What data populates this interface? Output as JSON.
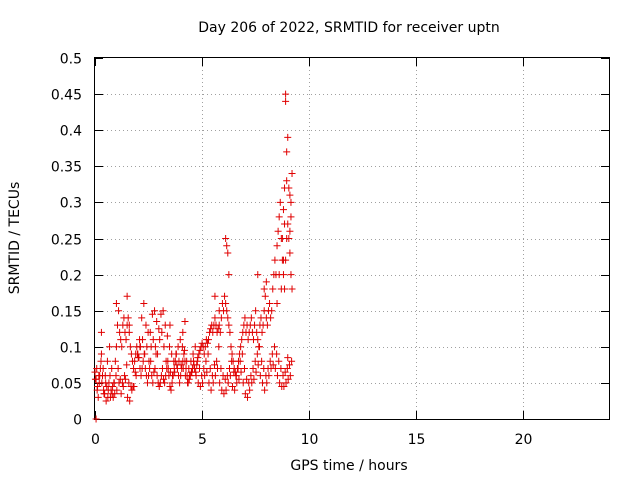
{
  "chart_data": {
    "type": "scatter",
    "title": "Day 206 of 2022, SRMTID for receiver uptn",
    "xlabel": "GPS time / hours",
    "ylabel": "SRMTID / TECUs",
    "xlim": [
      0,
      24
    ],
    "ylim": [
      0,
      0.5
    ],
    "xticks": [
      0,
      5,
      10,
      15,
      20
    ],
    "yticks": [
      0,
      0.05,
      0.1,
      0.15,
      0.2,
      0.25,
      0.3,
      0.35,
      0.4,
      0.45,
      0.5
    ],
    "xtick_labels": [
      "0",
      "5",
      "10",
      "15",
      "20"
    ],
    "ytick_labels": [
      "0",
      "0.05",
      "0.1",
      "0.15",
      "0.2",
      "0.25",
      "0.3",
      "0.35",
      "0.4",
      "0.45",
      "0.5"
    ],
    "grid": true,
    "marker": "+",
    "color": "#e00000",
    "series": [
      {
        "name": "SRMTID",
        "x": [
          0.0,
          0.05,
          0.1,
          0.15,
          0.2,
          0.25,
          0.3,
          0.35,
          0.4,
          0.45,
          0.5,
          0.55,
          0.6,
          0.65,
          0.7,
          0.75,
          0.8,
          0.85,
          0.9,
          0.95,
          1.0,
          1.05,
          1.1,
          1.15,
          1.2,
          1.25,
          1.3,
          1.35,
          1.4,
          1.45,
          1.5,
          1.55,
          1.6,
          1.65,
          1.7,
          1.75,
          1.8,
          1.85,
          1.9,
          1.95,
          2.0,
          2.05,
          2.1,
          2.15,
          2.2,
          2.25,
          2.3,
          2.35,
          2.4,
          2.45,
          2.5,
          2.55,
          2.6,
          2.65,
          2.7,
          2.75,
          2.8,
          2.85,
          2.9,
          2.95,
          3.0,
          3.05,
          3.1,
          3.15,
          3.2,
          3.25,
          3.3,
          3.35,
          3.4,
          3.45,
          3.5,
          3.55,
          3.6,
          3.65,
          3.7,
          3.75,
          3.8,
          3.85,
          3.9,
          3.95,
          4.0,
          4.05,
          4.1,
          4.15,
          4.2,
          4.25,
          4.3,
          4.35,
          4.4,
          4.45,
          4.5,
          4.55,
          4.6,
          4.65,
          4.7,
          4.75,
          4.8,
          4.85,
          4.9,
          4.95,
          5.0,
          5.05,
          5.1,
          5.15,
          5.2,
          5.25,
          5.3,
          5.35,
          5.4,
          5.45,
          5.5,
          5.55,
          5.6,
          5.65,
          5.7,
          5.75,
          5.8,
          5.85,
          5.9,
          5.95,
          6.0,
          6.05,
          6.1,
          6.15,
          6.2,
          6.25,
          6.3,
          6.35,
          6.4,
          6.45,
          6.5,
          6.55,
          6.6,
          6.65,
          6.7,
          6.75,
          6.8,
          6.85,
          6.9,
          6.95,
          7.0,
          7.05,
          7.1,
          7.15,
          7.2,
          7.25,
          7.3,
          7.35,
          7.4,
          7.45,
          7.5,
          7.55,
          7.6,
          7.65,
          7.7,
          7.75,
          7.8,
          7.85,
          7.9,
          7.95,
          8.0,
          8.05,
          8.1,
          8.15,
          8.2,
          8.25,
          8.3,
          8.35,
          8.4,
          8.45,
          8.5,
          8.55,
          8.6,
          8.65,
          8.7,
          8.75,
          8.8,
          8.85,
          8.9,
          8.95,
          9.0,
          9.05,
          9.1,
          9.15,
          9.2,
          0.02,
          0.12,
          0.22,
          0.32,
          0.42,
          0.52,
          0.62,
          0.72,
          0.82,
          0.92,
          1.02,
          1.12,
          1.22,
          1.32,
          1.42,
          1.52,
          1.62,
          1.72,
          1.82,
          1.92,
          2.02,
          2.12,
          2.22,
          2.32,
          2.42,
          2.52,
          2.62,
          2.72,
          2.82,
          2.92,
          3.02,
          3.12,
          3.22,
          3.32,
          3.42,
          3.52,
          3.62,
          3.72,
          3.82,
          3.92,
          4.02,
          4.12,
          4.22,
          4.32,
          4.42,
          4.52,
          4.62,
          4.72,
          4.82,
          4.92,
          5.02,
          5.12,
          5.22,
          5.32,
          5.42,
          5.52,
          5.62,
          5.72,
          5.82,
          5.92,
          6.02,
          6.12,
          6.22,
          6.32,
          6.42,
          6.52,
          6.62,
          6.72,
          6.82,
          6.92,
          7.02,
          7.12,
          7.22,
          7.32,
          7.42,
          7.52,
          7.62,
          7.72,
          7.82,
          7.92,
          8.02,
          8.12,
          8.22,
          8.32,
          8.42,
          8.52,
          8.62,
          8.72,
          8.82,
          8.92,
          9.02,
          9.12,
          0.08,
          0.18,
          0.28,
          0.38,
          0.48,
          0.58,
          0.68,
          0.78,
          0.88,
          0.98,
          1.08,
          1.18,
          1.28,
          1.38,
          1.48,
          1.58,
          1.68,
          1.78,
          1.88,
          1.98,
          2.08,
          2.18,
          2.28,
          2.38,
          2.48,
          2.58,
          2.68,
          2.78,
          2.88,
          2.98,
          3.08,
          3.18,
          3.28,
          3.38,
          3.48,
          3.58,
          3.68,
          3.78,
          3.88,
          3.98,
          4.08,
          4.18,
          4.28,
          4.38,
          4.48,
          4.58,
          4.68,
          4.78,
          4.88,
          4.98,
          5.08,
          5.18,
          5.28,
          5.38,
          5.48,
          5.58,
          5.68,
          5.78,
          5.88,
          5.98,
          6.08,
          6.18,
          6.28,
          6.38,
          6.48,
          6.58,
          6.68,
          6.78,
          6.88,
          6.98,
          7.08,
          7.18,
          7.28,
          7.38,
          7.48,
          7.58,
          7.68,
          7.78,
          7.88,
          7.98,
          8.08,
          8.18,
          8.28,
          8.38,
          8.48,
          8.58,
          8.68,
          8.78,
          8.88,
          8.98,
          9.08,
          9.18,
          0.05,
          0.3,
          1.0,
          1.5,
          1.6,
          2.1,
          3.5,
          4.1,
          4.2,
          5.6,
          5.8,
          6.1,
          6.15,
          6.2,
          6.25,
          7.6,
          7.9,
          8.0,
          8.5,
          8.6,
          8.7,
          8.8,
          8.85,
          8.9,
          8.9,
          8.95,
          8.95,
          9.0,
          9.05,
          9.1,
          9.1,
          9.15,
          9.15,
          9.2,
          8.75,
          8.8,
          8.85,
          9.0
        ],
        "y": [
          0.065,
          0.055,
          0.04,
          0.03,
          0.05,
          0.07,
          0.09,
          0.06,
          0.04,
          0.035,
          0.05,
          0.045,
          0.03,
          0.05,
          0.06,
          0.04,
          0.035,
          0.03,
          0.05,
          0.08,
          0.1,
          0.13,
          0.15,
          0.12,
          0.11,
          0.1,
          0.13,
          0.14,
          0.12,
          0.11,
          0.13,
          0.14,
          0.12,
          0.1,
          0.09,
          0.08,
          0.07,
          0.08,
          0.09,
          0.1,
          0.09,
          0.085,
          0.07,
          0.06,
          0.07,
          0.08,
          0.09,
          0.07,
          0.06,
          0.05,
          0.06,
          0.07,
          0.08,
          0.06,
          0.05,
          0.065,
          0.07,
          0.09,
          0.06,
          0.05,
          0.045,
          0.05,
          0.06,
          0.07,
          0.055,
          0.05,
          0.06,
          0.07,
          0.08,
          0.06,
          0.045,
          0.04,
          0.05,
          0.06,
          0.07,
          0.08,
          0.09,
          0.07,
          0.06,
          0.05,
          0.06,
          0.07,
          0.08,
          0.09,
          0.08,
          0.07,
          0.06,
          0.05,
          0.055,
          0.06,
          0.065,
          0.07,
          0.08,
          0.07,
          0.065,
          0.075,
          0.085,
          0.09,
          0.095,
          0.1,
          0.105,
          0.1,
          0.09,
          0.1,
          0.11,
          0.105,
          0.11,
          0.12,
          0.125,
          0.13,
          0.12,
          0.13,
          0.14,
          0.13,
          0.12,
          0.125,
          0.13,
          0.12,
          0.14,
          0.16,
          0.15,
          0.17,
          0.16,
          0.15,
          0.14,
          0.13,
          0.12,
          0.1,
          0.09,
          0.08,
          0.07,
          0.065,
          0.06,
          0.07,
          0.08,
          0.09,
          0.1,
          0.11,
          0.12,
          0.13,
          0.14,
          0.12,
          0.13,
          0.11,
          0.12,
          0.13,
          0.14,
          0.12,
          0.11,
          0.13,
          0.15,
          0.12,
          0.11,
          0.1,
          0.13,
          0.14,
          0.12,
          0.13,
          0.15,
          0.17,
          0.14,
          0.13,
          0.15,
          0.16,
          0.14,
          0.15,
          0.18,
          0.2,
          0.22,
          0.2,
          0.24,
          0.26,
          0.28,
          0.3,
          0.25,
          0.22,
          0.2,
          0.18,
          0.22,
          0.25,
          0.27,
          0.25,
          0.23,
          0.2,
          0.18,
          0.055,
          0.045,
          0.06,
          0.05,
          0.035,
          0.025,
          0.04,
          0.03,
          0.045,
          0.035,
          0.04,
          0.05,
          0.035,
          0.045,
          0.055,
          0.03,
          0.025,
          0.04,
          0.045,
          0.06,
          0.085,
          0.1,
          0.11,
          0.09,
          0.1,
          0.08,
          0.1,
          0.11,
          0.1,
          0.09,
          0.11,
          0.12,
          0.1,
          0.08,
          0.07,
          0.065,
          0.06,
          0.065,
          0.075,
          0.08,
          0.075,
          0.07,
          0.06,
          0.05,
          0.06,
          0.065,
          0.075,
          0.06,
          0.05,
          0.045,
          0.05,
          0.06,
          0.065,
          0.05,
          0.04,
          0.05,
          0.06,
          0.07,
          0.05,
          0.04,
          0.035,
          0.04,
          0.05,
          0.06,
          0.045,
          0.04,
          0.05,
          0.055,
          0.065,
          0.05,
          0.035,
          0.03,
          0.04,
          0.05,
          0.055,
          0.065,
          0.075,
          0.06,
          0.05,
          0.04,
          0.05,
          0.06,
          0.07,
          0.075,
          0.07,
          0.06,
          0.05,
          0.045,
          0.045,
          0.05,
          0.055,
          0.06,
          0.07,
          0.06,
          0.08,
          0.07,
          0.06,
          0.08,
          0.1,
          0.07,
          0.05,
          0.06,
          0.07,
          0.055,
          0.05,
          0.06,
          0.075,
          0.05,
          0.045,
          0.045,
          0.065,
          0.09,
          0.11,
          0.14,
          0.16,
          0.13,
          0.12,
          0.12,
          0.145,
          0.15,
          0.135,
          0.125,
          0.145,
          0.15,
          0.13,
          0.115,
          0.1,
          0.09,
          0.08,
          0.09,
          0.1,
          0.11,
          0.1,
          0.095,
          0.08,
          0.07,
          0.08,
          0.09,
          0.1,
          0.08,
          0.07,
          0.06,
          0.07,
          0.08,
          0.09,
          0.07,
          0.06,
          0.075,
          0.08,
          0.1,
          0.07,
          0.06,
          0.055,
          0.06,
          0.07,
          0.08,
          0.065,
          0.06,
          0.07,
          0.08,
          0.09,
          0.07,
          0.055,
          0.05,
          0.06,
          0.07,
          0.08,
          0.09,
          0.1,
          0.08,
          0.07,
          0.06,
          0.07,
          0.08,
          0.09,
          0.1,
          0.09,
          0.08,
          0.07,
          0.06,
          0.065,
          0.07,
          0.075,
          0.08,
          0.0,
          0.12,
          0.16,
          0.17,
          0.13,
          0.1,
          0.13,
          0.12,
          0.135,
          0.17,
          0.15,
          0.25,
          0.24,
          0.23,
          0.2,
          0.2,
          0.18,
          0.19,
          0.16,
          0.2,
          0.18,
          0.22,
          0.27,
          0.45,
          0.44,
          0.37,
          0.33,
          0.39,
          0.32,
          0.31,
          0.26,
          0.3,
          0.28,
          0.34,
          0.25,
          0.29,
          0.32,
          0.085
        ]
      }
    ]
  }
}
